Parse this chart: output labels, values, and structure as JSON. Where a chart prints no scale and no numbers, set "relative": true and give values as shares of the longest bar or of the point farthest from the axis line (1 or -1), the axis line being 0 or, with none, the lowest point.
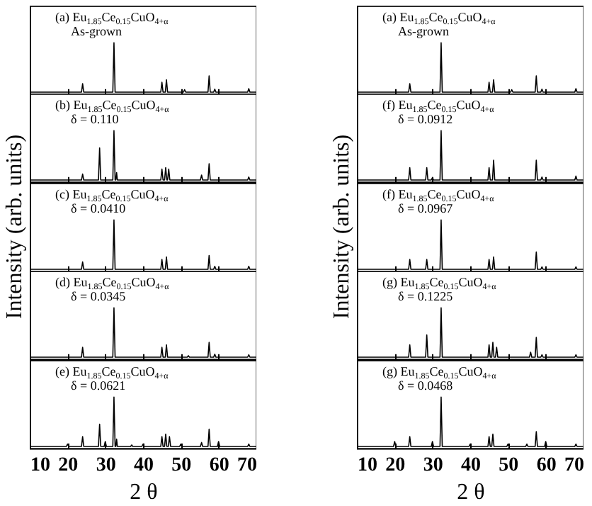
{
  "chart_data": [
    {
      "type": "line",
      "relative": true,
      "annotations": [
        "(a) Eu$_{1.85}$Ce$_{0.15}$CuO$_{4+α}$",
        "As-grown"
      ],
      "xlim": [
        10,
        70
      ],
      "xticks": [
        10,
        20,
        30,
        40,
        50,
        60,
        70
      ],
      "tick_labels": false,
      "grid": false,
      "series": [
        {
          "color": "#000000",
          "x": [
            10,
            23.7,
            24,
            24.3,
            32,
            32.3,
            32.6,
            44.7,
            45,
            45.3,
            45.9,
            46.2,
            46.5,
            50.7,
            51,
            51.3,
            57.2,
            57.5,
            57.8,
            58.7,
            59,
            59.3,
            67.7,
            68,
            68.3,
            70
          ],
          "values": [
            0,
            0,
            0.17,
            0,
            0,
            1,
            0,
            0,
            0.2,
            0,
            0,
            0.25,
            0,
            0,
            0.05,
            0,
            0,
            0.33,
            0,
            0,
            0.06,
            0,
            0,
            0.07,
            0,
            0
          ]
        }
      ]
    },
    {
      "type": "line",
      "relative": true,
      "annotations": [
        "(b) Eu$_{1.85}$Ce$_{0.15}$CuO$_{4+α}$",
        "δ = 0.110"
      ],
      "xlim": [
        10,
        70
      ],
      "xticks": [
        10,
        20,
        30,
        40,
        50,
        60,
        70
      ],
      "tick_labels": false,
      "grid": false,
      "series": [
        {
          "color": "#000000",
          "x": [
            10,
            23.7,
            24,
            24.3,
            28.2,
            28.5,
            28.8,
            32,
            32.3,
            32.6,
            32.8,
            33,
            33.2,
            44.7,
            45,
            45.3,
            45.7,
            46,
            46.3,
            46.5,
            46.8,
            47.1,
            55.2,
            55.5,
            55.8,
            57.2,
            57.5,
            57.8,
            67.7,
            68,
            68.3,
            70
          ],
          "values": [
            0,
            0,
            0.12,
            0,
            0,
            0.65,
            0,
            0,
            1,
            0,
            0,
            0.15,
            0,
            0,
            0.22,
            0,
            0,
            0.25,
            0,
            0,
            0.22,
            0,
            0,
            0.1,
            0,
            0,
            0.33,
            0,
            0,
            0.06,
            0,
            0
          ]
        }
      ]
    },
    {
      "type": "line",
      "relative": true,
      "ylabel": "Intensity (arb. units)",
      "annotations": [
        "(c) Eu$_{1.85}$Ce$_{0.15}$CuO$_{4+α}$",
        "δ = 0.0410"
      ],
      "xlim": [
        10,
        70
      ],
      "xticks": [
        10,
        20,
        30,
        40,
        50,
        60,
        70
      ],
      "tick_labels": false,
      "grid": false,
      "series": [
        {
          "color": "#000000",
          "x": [
            10,
            23.7,
            24,
            24.3,
            32,
            32.3,
            32.6,
            44.7,
            45,
            45.3,
            45.9,
            46.2,
            46.5,
            57.2,
            57.5,
            57.8,
            58.7,
            59,
            59.3,
            67.7,
            68,
            68.3,
            70
          ],
          "values": [
            0,
            0,
            0.15,
            0,
            0,
            1,
            0,
            0,
            0.2,
            0,
            0,
            0.25,
            0,
            0,
            0.28,
            0,
            0,
            0.06,
            0,
            0,
            0.06,
            0,
            0
          ]
        }
      ]
    },
    {
      "type": "line",
      "relative": true,
      "annotations": [
        "(d) Eu$_{1.85}$Ce$_{0.15}$CuO$_{4+α}$",
        "δ = 0.0345"
      ],
      "xlim": [
        10,
        70
      ],
      "xticks": [
        10,
        20,
        30,
        40,
        50,
        60,
        70
      ],
      "tick_labels": false,
      "grid": false,
      "series": [
        {
          "color": "#000000",
          "x": [
            10,
            23.7,
            24,
            24.3,
            32,
            32.3,
            32.6,
            44.7,
            45,
            45.3,
            45.9,
            46.2,
            46.5,
            51.7,
            52,
            52.3,
            57.2,
            57.5,
            57.8,
            58.7,
            59,
            59.3,
            67.7,
            68,
            68.3,
            70
          ],
          "values": [
            0,
            0,
            0.2,
            0,
            0,
            1,
            0,
            0,
            0.2,
            0,
            0,
            0.25,
            0,
            0,
            0.03,
            0,
            0,
            0.3,
            0,
            0,
            0.06,
            0,
            0,
            0.05,
            0,
            0
          ]
        }
      ]
    },
    {
      "type": "line",
      "relative": true,
      "xlabel": "2 θ",
      "annotations": [
        "(e) Eu$_{1.85}$Ce$_{0.15}$CuO$_{4+α}$",
        "δ = 0.0621"
      ],
      "xlim": [
        10,
        70
      ],
      "xticks": [
        10,
        20,
        30,
        40,
        50,
        60,
        70
      ],
      "tick_labels": "x",
      "grid": false,
      "series": [
        {
          "color": "#000000",
          "x": [
            10,
            19.7,
            20,
            20.3,
            23.7,
            24,
            24.3,
            28.2,
            28.5,
            28.8,
            29.7,
            30,
            30.3,
            32,
            32.3,
            32.6,
            32.8,
            33,
            33.2,
            36.7,
            37,
            37.3,
            39.7,
            40,
            40.3,
            44.7,
            45,
            45.3,
            45.7,
            46,
            46.3,
            46.7,
            47,
            47.3,
            49.7,
            50,
            50.3,
            55.2,
            55.5,
            55.8,
            57.2,
            57.5,
            57.8,
            59.7,
            60,
            60.3,
            67.7,
            68,
            68.3,
            70
          ],
          "values": [
            0,
            0,
            0.05,
            0,
            0,
            0.2,
            0,
            0,
            0.45,
            0,
            0,
            0.1,
            0,
            0,
            1,
            0,
            0,
            0.15,
            0,
            0,
            0.03,
            0,
            0,
            0.05,
            0,
            0,
            0.2,
            0,
            0,
            0.25,
            0,
            0,
            0.2,
            0,
            0,
            0.05,
            0,
            0,
            0.08,
            0,
            0,
            0.35,
            0,
            0,
            0.1,
            0,
            0,
            0.05,
            0,
            0
          ]
        }
      ]
    },
    {
      "type": "line",
      "relative": true,
      "annotations": [
        "(a) Eu$_{1.85}$Ce$_{0.15}$CuO$_{4+α}$",
        "As-grown"
      ],
      "xlim": [
        10,
        70
      ],
      "xticks": [
        10,
        20,
        30,
        40,
        50,
        60,
        70
      ],
      "tick_labels": false,
      "grid": false,
      "series": [
        {
          "color": "#000000",
          "x": [
            10,
            23.7,
            24,
            24.3,
            32,
            32.3,
            32.6,
            44.7,
            45,
            45.3,
            45.9,
            46.2,
            46.5,
            50.7,
            51,
            51.3,
            57.2,
            57.5,
            57.8,
            58.7,
            59,
            59.3,
            67.7,
            68,
            68.3,
            70
          ],
          "values": [
            0,
            0,
            0.17,
            0,
            0,
            1,
            0,
            0,
            0.2,
            0,
            0,
            0.25,
            0,
            0,
            0.05,
            0,
            0,
            0.33,
            0,
            0,
            0.06,
            0,
            0,
            0.07,
            0,
            0
          ]
        }
      ]
    },
    {
      "type": "line",
      "relative": true,
      "annotations": [
        "(f) Eu$_{1.85}$Ce$_{0.15}$CuO$_{4+α}$",
        "δ = 0.0912"
      ],
      "xlim": [
        10,
        70
      ],
      "xticks": [
        10,
        20,
        30,
        40,
        50,
        60,
        70
      ],
      "tick_labels": false,
      "grid": false,
      "series": [
        {
          "color": "#000000",
          "x": [
            10,
            23.7,
            24,
            24.3,
            28.2,
            28.5,
            28.8,
            29.7,
            30,
            30.3,
            32,
            32.3,
            32.6,
            44.7,
            45,
            45.3,
            45.9,
            46.2,
            46.5,
            57.2,
            57.5,
            57.8,
            58.7,
            59,
            59.3,
            67.7,
            68,
            68.3,
            70
          ],
          "values": [
            0,
            0,
            0.25,
            0,
            0,
            0.25,
            0,
            0,
            0.05,
            0,
            0,
            1,
            0,
            0,
            0.25,
            0,
            0,
            0.4,
            0,
            0,
            0.4,
            0,
            0,
            0.06,
            0,
            0,
            0.08,
            0,
            0
          ]
        }
      ]
    },
    {
      "type": "line",
      "relative": true,
      "ylabel": "Intensity (arb. units)",
      "annotations": [
        "(f) Eu$_{1.85}$Ce$_{0.15}$CuO$_{4+α}$",
        "δ = 0.0967"
      ],
      "xlim": [
        10,
        70
      ],
      "xticks": [
        10,
        20,
        30,
        40,
        50,
        60,
        70
      ],
      "tick_labels": false,
      "grid": false,
      "series": [
        {
          "color": "#000000",
          "x": [
            10,
            23.7,
            24,
            24.3,
            28.2,
            28.5,
            28.8,
            32,
            32.3,
            32.6,
            44.7,
            45,
            45.3,
            45.9,
            46.2,
            46.5,
            57.2,
            57.5,
            57.8,
            58.7,
            59,
            59.3,
            67.7,
            68,
            68.3,
            70
          ],
          "values": [
            0,
            0,
            0.2,
            0,
            0,
            0.2,
            0,
            0,
            1,
            0,
            0,
            0.2,
            0,
            0,
            0.25,
            0,
            0,
            0.35,
            0,
            0,
            0.05,
            0,
            0,
            0.05,
            0,
            0
          ]
        }
      ]
    },
    {
      "type": "line",
      "relative": true,
      "annotations": [
        "(g) Eu$_{1.85}$Ce$_{0.15}$CuO$_{4+α}$",
        "δ = 0.1225"
      ],
      "xlim": [
        10,
        70
      ],
      "xticks": [
        10,
        20,
        30,
        40,
        50,
        60,
        70
      ],
      "tick_labels": false,
      "grid": false,
      "series": [
        {
          "color": "#000000",
          "x": [
            10,
            23.7,
            24,
            24.3,
            28.2,
            28.5,
            28.8,
            32,
            32.3,
            32.6,
            44.7,
            45,
            45.3,
            45.7,
            46,
            46.3,
            46.7,
            47,
            47.3,
            55.7,
            56,
            56.3,
            57.2,
            57.5,
            57.8,
            58.7,
            59,
            59.3,
            67.7,
            68,
            68.3,
            70
          ],
          "values": [
            0,
            0,
            0.25,
            0,
            0,
            0.45,
            0,
            0,
            1,
            0,
            0,
            0.25,
            0,
            0,
            0.3,
            0,
            0,
            0.2,
            0,
            0,
            0.1,
            0,
            0,
            0.4,
            0,
            0,
            0.05,
            0,
            0,
            0.05,
            0,
            0
          ]
        }
      ]
    },
    {
      "type": "line",
      "relative": true,
      "xlabel": "2 θ",
      "annotations": [
        "(g) Eu$_{1.85}$Ce$_{0.15}$CuO$_{4+α}$",
        "δ = 0.0468"
      ],
      "xlim": [
        10,
        70
      ],
      "xticks": [
        10,
        20,
        30,
        40,
        50,
        60,
        70
      ],
      "tick_labels": "x",
      "grid": false,
      "series": [
        {
          "color": "#000000",
          "x": [
            10,
            19.7,
            20,
            20.3,
            23.7,
            24,
            24.3,
            29.7,
            30,
            30.3,
            32,
            32.3,
            32.6,
            39.7,
            40,
            40.3,
            44.7,
            45,
            45.3,
            45.7,
            46,
            46.3,
            49.7,
            50,
            50.3,
            54.7,
            55,
            55.3,
            57.2,
            57.5,
            57.8,
            59.7,
            60,
            60.3,
            67.7,
            68,
            68.3,
            70
          ],
          "values": [
            0,
            0,
            0.1,
            0,
            0,
            0.2,
            0,
            0,
            0.1,
            0,
            0,
            1,
            0,
            0,
            0.05,
            0,
            0,
            0.2,
            0,
            0,
            0.25,
            0,
            0,
            0.05,
            0,
            0,
            0.05,
            0,
            0,
            0.3,
            0,
            0,
            0.1,
            0,
            0,
            0.05,
            0,
            0
          ]
        }
      ]
    }
  ]
}
